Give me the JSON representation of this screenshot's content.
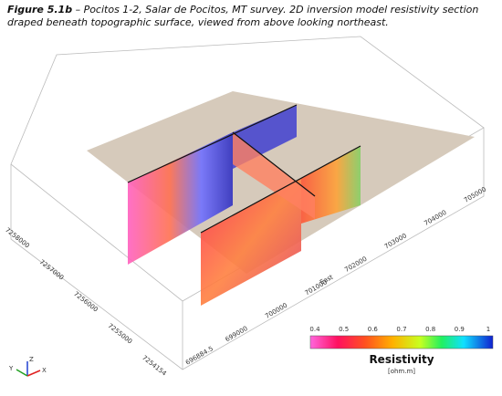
{
  "caption": {
    "label": "Figure 5.1b",
    "text": " – Pocitos 1-2, Salar de Pocitos, MT survey. 2D inversion model resistivity section draped beneath topographic surface, viewed from above looking northeast."
  },
  "east_axis": {
    "title": "East",
    "ticks": [
      "696884.5",
      "699000",
      "700000",
      "701000",
      "702000",
      "703000",
      "704000",
      "705000"
    ]
  },
  "north_axis": {
    "ticks": [
      "7254154",
      "7255000",
      "7256000",
      "7257000",
      "7258000"
    ]
  },
  "colorbar": {
    "title": "Resistivity",
    "unit": "[ohm.m]",
    "ticks": [
      0.4,
      0.5,
      0.6,
      0.7,
      0.8,
      0.9,
      1.0
    ]
  },
  "triad": {
    "labels": [
      "Z",
      "Y",
      "X"
    ]
  }
}
